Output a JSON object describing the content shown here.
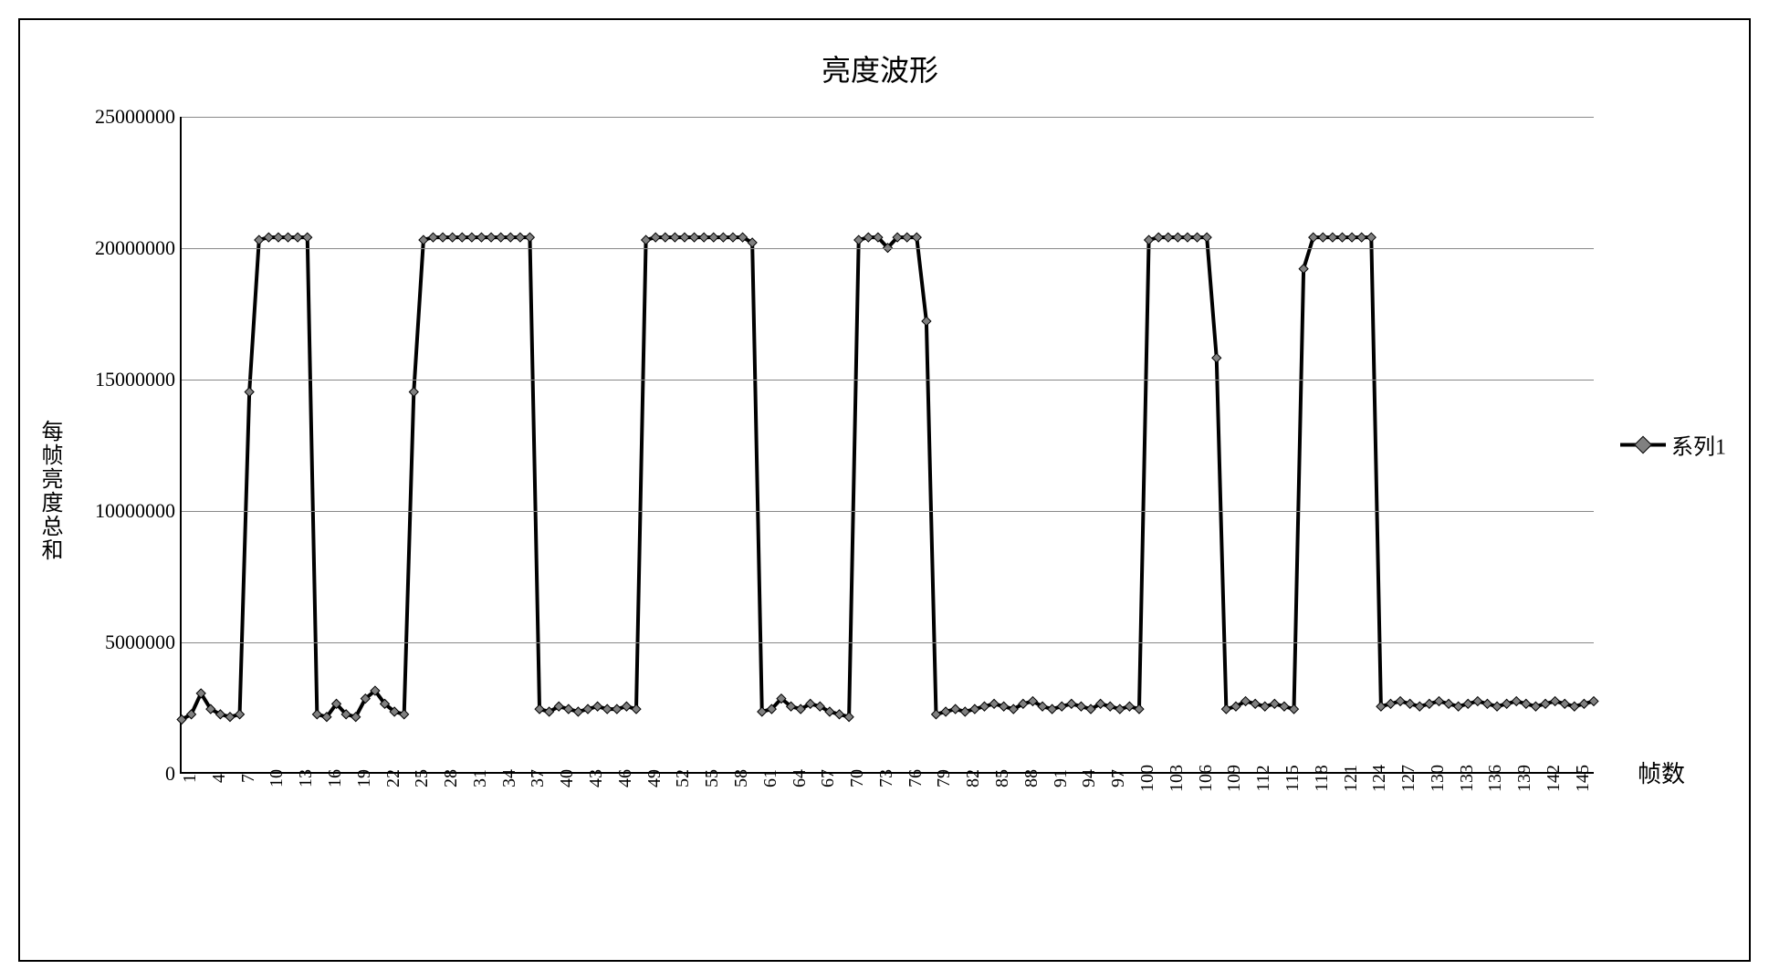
{
  "chart": {
    "type": "line",
    "title": "亮度波形",
    "title_fontsize": 32,
    "y_axis_label": "每帧亮度总和",
    "x_axis_label": "帧数",
    "label_fontsize": 24,
    "tick_fontsize": 22,
    "ylim": [
      0,
      25000000
    ],
    "ytick_step": 5000000,
    "y_ticks": [
      0,
      5000000,
      10000000,
      15000000,
      20000000,
      25000000
    ],
    "x_ticks": [
      1,
      4,
      7,
      10,
      13,
      16,
      19,
      22,
      25,
      28,
      31,
      34,
      37,
      40,
      43,
      46,
      49,
      52,
      55,
      58,
      61,
      64,
      67,
      70,
      73,
      76,
      79,
      82,
      85,
      88,
      91,
      94,
      97,
      100,
      103,
      106,
      109,
      112,
      115,
      118,
      121,
      124,
      127,
      130,
      133,
      136,
      139,
      142,
      145
    ],
    "x_range": [
      1,
      147
    ],
    "background_color": "#ffffff",
    "grid_color": "#888888",
    "border_color": "#000000",
    "line_color": "#000000",
    "marker_fill": "#808080",
    "line_width": 4,
    "marker_size": 7,
    "marker_style": "diamond",
    "legend": {
      "label": "系列1",
      "position": "right"
    },
    "series": {
      "name": "系列1",
      "x": [
        1,
        2,
        3,
        4,
        5,
        6,
        7,
        8,
        9,
        10,
        11,
        12,
        13,
        14,
        15,
        16,
        17,
        18,
        19,
        20,
        21,
        22,
        23,
        24,
        25,
        26,
        27,
        28,
        29,
        30,
        31,
        32,
        33,
        34,
        35,
        36,
        37,
        38,
        39,
        40,
        41,
        42,
        43,
        44,
        45,
        46,
        47,
        48,
        49,
        50,
        51,
        52,
        53,
        54,
        55,
        56,
        57,
        58,
        59,
        60,
        61,
        62,
        63,
        64,
        65,
        66,
        67,
        68,
        69,
        70,
        71,
        72,
        73,
        74,
        75,
        76,
        77,
        78,
        79,
        80,
        81,
        82,
        83,
        84,
        85,
        86,
        87,
        88,
        89,
        90,
        91,
        92,
        93,
        94,
        95,
        96,
        97,
        98,
        99,
        100,
        101,
        102,
        103,
        104,
        105,
        106,
        107,
        108,
        109,
        110,
        111,
        112,
        113,
        114,
        115,
        116,
        117,
        118,
        119,
        120,
        121,
        122,
        123,
        124,
        125,
        126,
        127,
        128,
        129,
        130,
        131,
        132,
        133,
        134,
        135,
        136,
        137,
        138,
        139,
        140,
        141,
        142,
        143,
        144,
        145,
        146,
        147
      ],
      "y": [
        2000000,
        2200000,
        3000000,
        2400000,
        2200000,
        2100000,
        2200000,
        14500000,
        20300000,
        20400000,
        20400000,
        20400000,
        20400000,
        20400000,
        2200000,
        2100000,
        2600000,
        2200000,
        2100000,
        2800000,
        3100000,
        2600000,
        2300000,
        2200000,
        14500000,
        20300000,
        20400000,
        20400000,
        20400000,
        20400000,
        20400000,
        20400000,
        20400000,
        20400000,
        20400000,
        20400000,
        20400000,
        2400000,
        2300000,
        2500000,
        2400000,
        2300000,
        2400000,
        2500000,
        2400000,
        2400000,
        2500000,
        2400000,
        20300000,
        20400000,
        20400000,
        20400000,
        20400000,
        20400000,
        20400000,
        20400000,
        20400000,
        20400000,
        20400000,
        20200000,
        2300000,
        2400000,
        2800000,
        2500000,
        2400000,
        2600000,
        2500000,
        2300000,
        2200000,
        2100000,
        20300000,
        20400000,
        20400000,
        20000000,
        20400000,
        20400000,
        20400000,
        17200000,
        2200000,
        2300000,
        2400000,
        2300000,
        2400000,
        2500000,
        2600000,
        2500000,
        2400000,
        2600000,
        2700000,
        2500000,
        2400000,
        2500000,
        2600000,
        2500000,
        2400000,
        2600000,
        2500000,
        2400000,
        2500000,
        2400000,
        20300000,
        20400000,
        20400000,
        20400000,
        20400000,
        20400000,
        20400000,
        15800000,
        2400000,
        2500000,
        2700000,
        2600000,
        2500000,
        2600000,
        2500000,
        2400000,
        19200000,
        20400000,
        20400000,
        20400000,
        20400000,
        20400000,
        20400000,
        20400000,
        2500000,
        2600000,
        2700000,
        2600000,
        2500000,
        2600000,
        2700000,
        2600000,
        2500000,
        2600000,
        2700000,
        2600000,
        2500000,
        2600000,
        2700000,
        2600000,
        2500000,
        2600000,
        2700000,
        2600000,
        2500000,
        2600000,
        2700000
      ]
    }
  }
}
